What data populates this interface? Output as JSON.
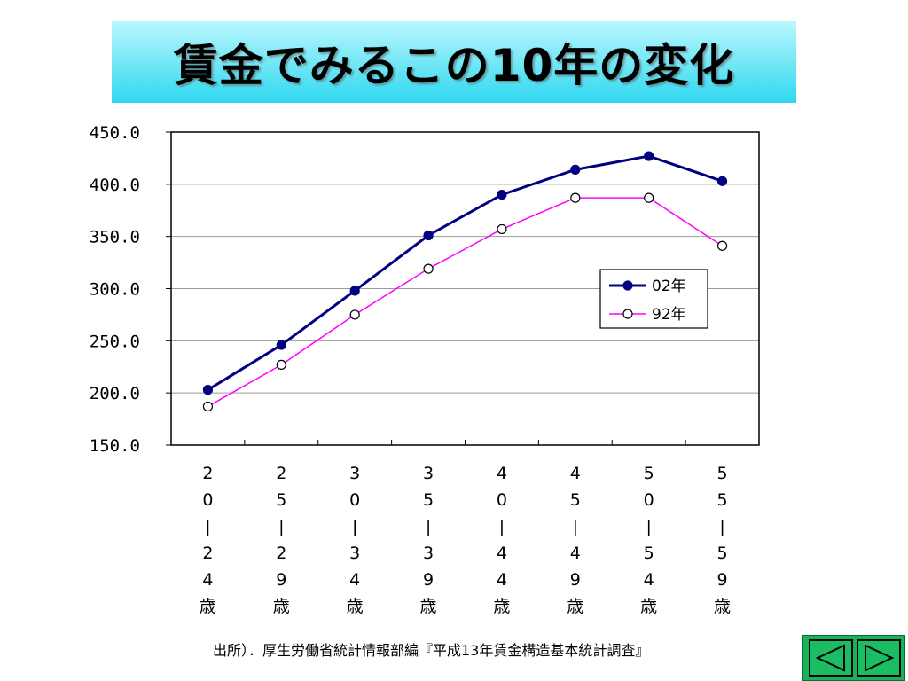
{
  "title": "賃金でみるこの10年の変化",
  "source": "出所）．厚生労働省統計情報部編『平成13年賃金構造基本統計調査』",
  "nav": {
    "prev_icon": "triangle-left-icon",
    "next_icon": "triangle-right-icon"
  },
  "colors": {
    "series_02": "#000080",
    "series_92": "#ff00ff",
    "banner_top": "#baf7fd",
    "banner_bottom": "#2fd8f0",
    "nav_bg": "#1bbd62"
  },
  "chart_data": {
    "type": "line",
    "title": "",
    "xlabel": "",
    "ylabel": "",
    "ylim": [
      150,
      450
    ],
    "yticks": [
      "450.0",
      "400.0",
      "350.0",
      "300.0",
      "250.0",
      "200.0",
      "150.0"
    ],
    "grid": true,
    "legend_position": "right",
    "categories": [
      "20-24歳",
      "25-29歳",
      "30-34歳",
      "35-39歳",
      "40-44歳",
      "45-49歳",
      "50-54歳",
      "55-59歳"
    ],
    "category_labels_vertical": [
      [
        "2",
        "0",
        "|",
        "2",
        "4",
        "歳"
      ],
      [
        "2",
        "5",
        "|",
        "2",
        "9",
        "歳"
      ],
      [
        "3",
        "0",
        "|",
        "3",
        "4",
        "歳"
      ],
      [
        "3",
        "5",
        "|",
        "3",
        "9",
        "歳"
      ],
      [
        "4",
        "0",
        "|",
        "4",
        "4",
        "歳"
      ],
      [
        "4",
        "5",
        "|",
        "4",
        "9",
        "歳"
      ],
      [
        "5",
        "0",
        "|",
        "5",
        "4",
        "歳"
      ],
      [
        "5",
        "5",
        "|",
        "5",
        "9",
        "歳"
      ]
    ],
    "series": [
      {
        "name": "02年",
        "values": [
          203,
          246,
          298,
          351,
          390,
          414,
          427,
          403
        ],
        "marker": "filled-circle"
      },
      {
        "name": "92年",
        "values": [
          187,
          227,
          275,
          319,
          357,
          387,
          387,
          341
        ],
        "marker": "open-circle"
      }
    ]
  }
}
